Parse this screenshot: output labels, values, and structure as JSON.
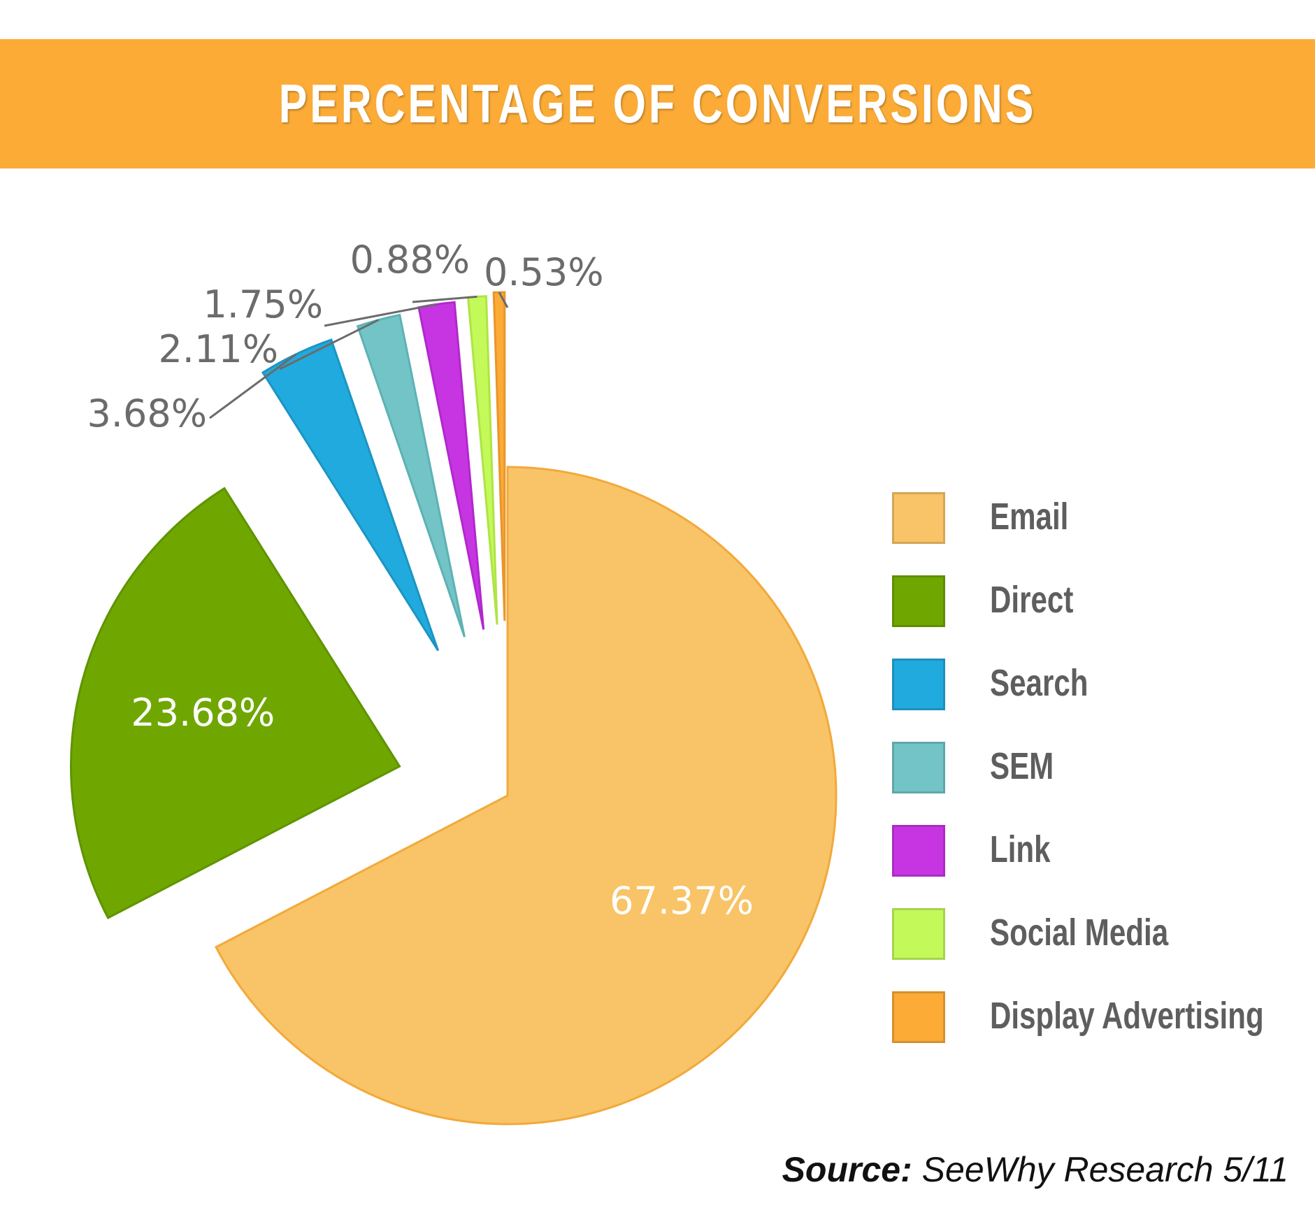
{
  "title": "PERCENTAGE OF CONVERSIONS",
  "source": {
    "label": "Source:",
    "text": "SeeWhy Research 5/11"
  },
  "chart_data": {
    "type": "pie",
    "title": "PERCENTAGE OF CONVERSIONS",
    "legend_position": "right",
    "slices": [
      {
        "name": "Email",
        "value": 67.37,
        "label": "67.37%",
        "color": "#F8C467",
        "stroke": "#F2A93B"
      },
      {
        "name": "Direct",
        "value": 23.68,
        "label": "23.68%",
        "color": "#6FA700",
        "stroke": "#5F9400"
      },
      {
        "name": "Search",
        "value": 3.68,
        "label": "3.68%",
        "color": "#21AADD",
        "stroke": "#1B95C3"
      },
      {
        "name": "SEM",
        "value": 2.11,
        "label": "2.11%",
        "color": "#73C4C6",
        "stroke": "#5DB2B5"
      },
      {
        "name": "Link",
        "value": 1.75,
        "label": "1.75%",
        "color": "#C735E3",
        "stroke": "#B128CC"
      },
      {
        "name": "Social Media",
        "value": 0.88,
        "label": "0.88%",
        "color": "#C4F95A",
        "stroke": "#AEE444"
      },
      {
        "name": "Display Advertising",
        "value": 0.53,
        "label": "0.53%",
        "color": "#FBAB36",
        "stroke": "#E8962A"
      }
    ]
  }
}
